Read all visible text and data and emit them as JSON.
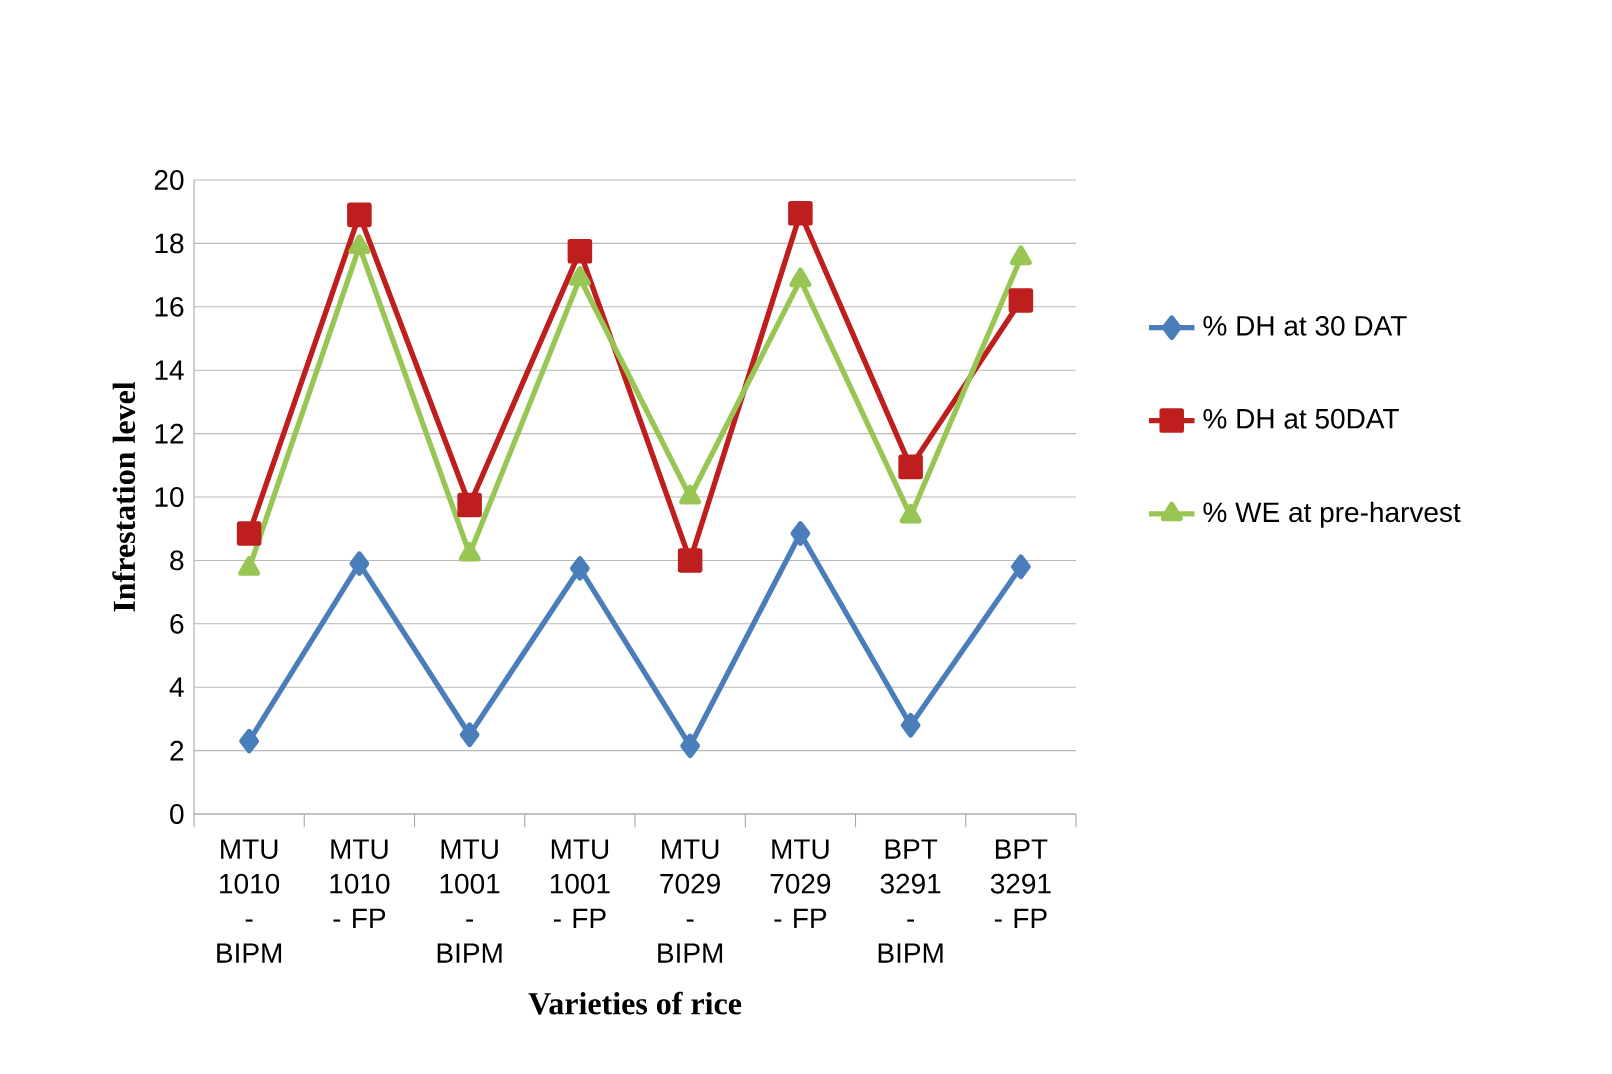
{
  "chart_data": {
    "type": "line",
    "xlabel": "Varieties of rice",
    "ylabel": "Infrestation level",
    "categories": [
      "MTU 1010 - BIPM",
      "MTU 1010 - FP",
      "MTU 1001 - BIPM",
      "MTU 1001 - FP",
      "MTU 7029 - BIPM",
      "MTU 7029 - FP",
      "BPT 3291 - BIPM",
      "BPT 3291 - FP"
    ],
    "series": [
      {
        "name": "% DH at 30 DAT",
        "color": "#4a7ebb",
        "marker": "diamond",
        "values": [
          2.3,
          7.9,
          2.5,
          7.75,
          2.15,
          8.85,
          2.8,
          7.8
        ]
      },
      {
        "name": "% DH at 50DAT",
        "color": "#be1e1e",
        "marker": "square",
        "values": [
          8.85,
          18.9,
          9.75,
          17.75,
          8.0,
          18.95,
          10.95,
          16.2
        ]
      },
      {
        "name": "% WE at pre-harvest",
        "color": "#98c654",
        "marker": "triangle",
        "values": [
          7.75,
          17.9,
          8.2,
          16.9,
          10.0,
          16.85,
          9.4,
          17.55
        ]
      }
    ],
    "ylim": [
      0,
      20
    ],
    "yticks": [
      0,
      2,
      4,
      6,
      8,
      10,
      12,
      14,
      16,
      18,
      20
    ],
    "grid": "y",
    "legend": "right",
    "line_style": "solid"
  }
}
